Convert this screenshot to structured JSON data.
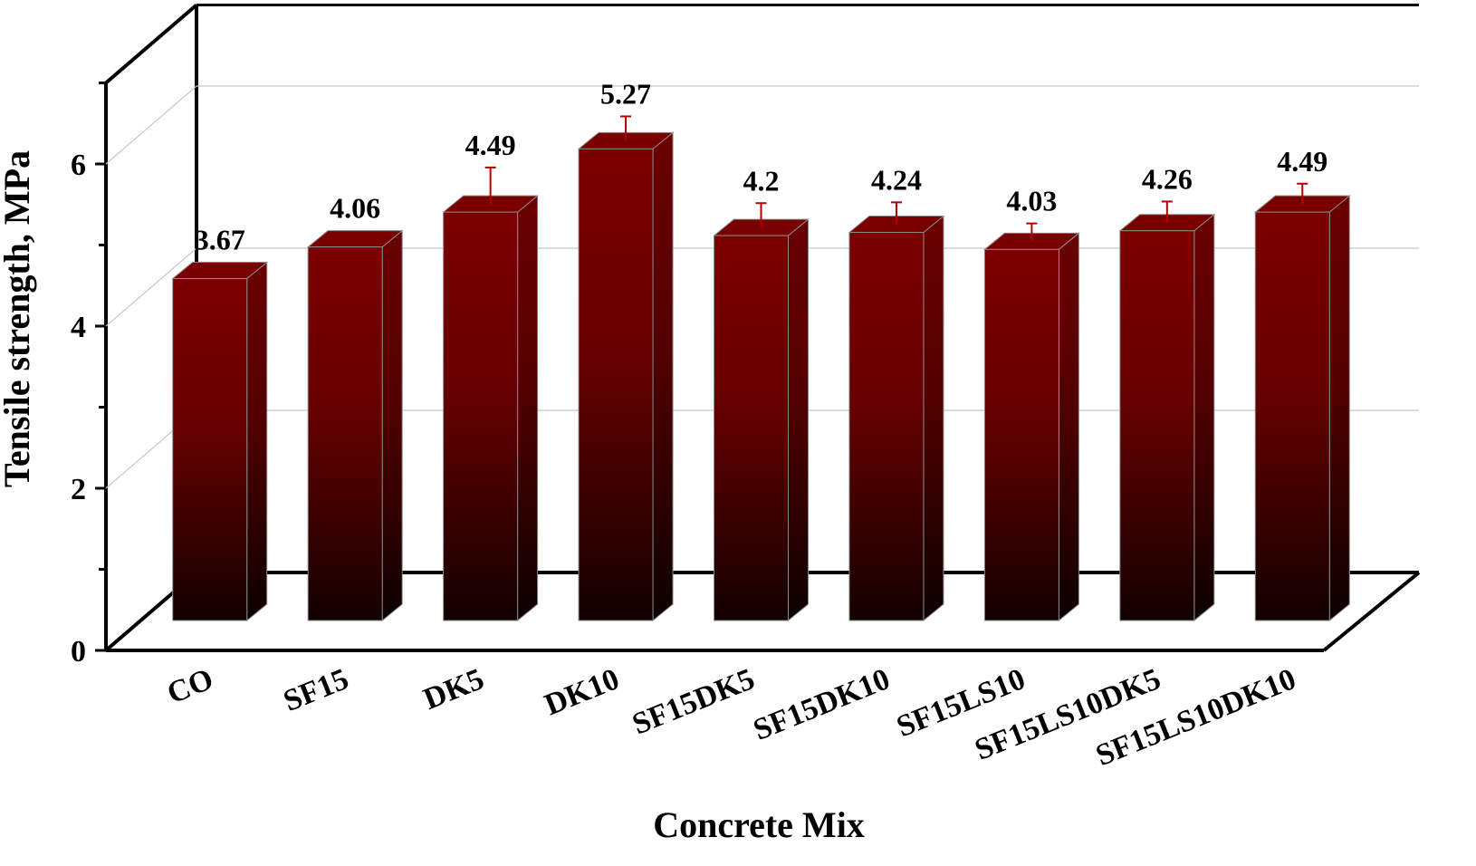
{
  "chart_data": {
    "type": "bar",
    "title": "",
    "xlabel": "Concrete Mix",
    "ylabel": "Tensile strength, MPa",
    "categories": [
      "CO",
      "SF15",
      "DK5",
      "DK10",
      "SF15DK5",
      "SF15DK10",
      "SF15LS10",
      "SF15LS10DK5",
      "SF15LS10DK10"
    ],
    "values": [
      3.67,
      4.06,
      4.49,
      5.27,
      4.2,
      4.24,
      4.03,
      4.26,
      4.49
    ],
    "value_labels": [
      "3.67",
      "4.06",
      "4.49",
      "5.27",
      "4.2",
      "4.24",
      "4.03",
      "4.26",
      "4.49"
    ],
    "error": [
      0,
      0,
      0.45,
      0.3,
      0.3,
      0.27,
      0.22,
      0.26,
      0.25
    ],
    "ylim": [
      0,
      7
    ],
    "yticks": [
      0,
      2,
      4,
      6
    ],
    "ytick_labels": [
      "0",
      "2",
      "4",
      "6"
    ],
    "grid": true,
    "style": "3d-perspective",
    "colors": {
      "bar_top": "#7d0000",
      "bar_bottom": "#120000",
      "error_bar": "#b00000",
      "grid": "#c8c8c8"
    }
  }
}
